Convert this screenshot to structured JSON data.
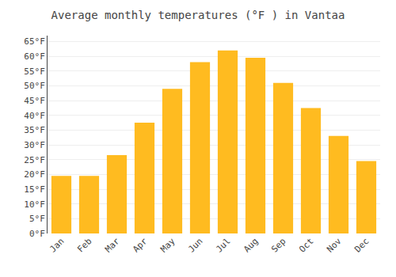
{
  "chart_data": {
    "type": "bar",
    "title": "Average monthly temperatures (°F ) in Vantaa",
    "categories": [
      "Jan",
      "Feb",
      "Mar",
      "Apr",
      "May",
      "Jun",
      "Jul",
      "Aug",
      "Sep",
      "Oct",
      "Nov",
      "Dec"
    ],
    "values": [
      19.5,
      19.5,
      26.5,
      37.5,
      49.0,
      58.0,
      62.0,
      59.5,
      51.0,
      42.5,
      33.0,
      24.5
    ],
    "color": "#FFBB20",
    "ylim": [
      0,
      67
    ],
    "yticks": [
      {
        "value": 0,
        "label": "0°F"
      },
      {
        "value": 5,
        "label": "5°F"
      },
      {
        "value": 10,
        "label": "10°F"
      },
      {
        "value": 15,
        "label": "15°F"
      },
      {
        "value": 20,
        "label": "20°F"
      },
      {
        "value": 25,
        "label": "25°F"
      },
      {
        "value": 30,
        "label": "30°F"
      },
      {
        "value": 35,
        "label": "35°F"
      },
      {
        "value": 40,
        "label": "40°F"
      },
      {
        "value": 45,
        "label": "45°F"
      },
      {
        "value": 50,
        "label": "50°F"
      },
      {
        "value": 55,
        "label": "55°F"
      },
      {
        "value": 60,
        "label": "60°F"
      },
      {
        "value": 65,
        "label": "65°F"
      }
    ],
    "grid": true
  }
}
